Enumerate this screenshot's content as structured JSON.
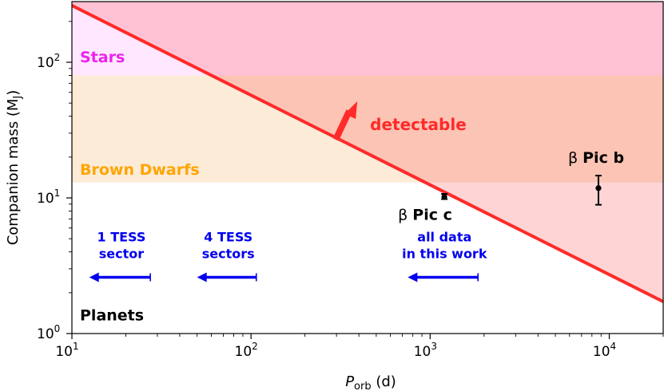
{
  "chart_data": {
    "type": "scatter",
    "xscale": "log",
    "yscale": "log",
    "xlim": [
      10,
      20000
    ],
    "ylim": [
      1,
      280
    ],
    "xlabel": {
      "main": "P",
      "sub": "orb",
      "rest": " (d)"
    },
    "ylabel": {
      "main": "Companion mass (M",
      "sub": "J",
      "rest": ")"
    },
    "x_ticks": [
      {
        "value": 10,
        "base": "10",
        "exp": "1"
      },
      {
        "value": 100,
        "base": "10",
        "exp": "2"
      },
      {
        "value": 1000,
        "base": "10",
        "exp": "3"
      },
      {
        "value": 10000,
        "base": "10",
        "exp": "4"
      }
    ],
    "y_ticks": [
      {
        "value": 1,
        "base": "10",
        "exp": "0"
      },
      {
        "value": 10,
        "base": "10",
        "exp": "1"
      },
      {
        "value": 100,
        "base": "10",
        "exp": "2"
      }
    ],
    "regions": [
      {
        "label": "Stars",
        "ymin": 80,
        "ymax": 280,
        "color": "#ff44ff",
        "opacity": 0.12,
        "label_color": "#ee22ee"
      },
      {
        "label": "Brown Dwarfs",
        "ymin": 13,
        "ymax": 80,
        "color": "#f5b060",
        "opacity": 0.25,
        "label_color": "#ffa500"
      },
      {
        "label": "Planets",
        "ymin": 1,
        "ymax": 13,
        "color": "#ffffff",
        "opacity": 0,
        "label_color": "#000000"
      }
    ],
    "detection_limit": {
      "label": "detectable",
      "color": "#ff2a2a",
      "points": [
        [
          10,
          262
        ],
        [
          20000,
          1.72
        ]
      ],
      "fill_color": "#ff2a2a",
      "fill_opacity": 0.2
    },
    "points": [
      {
        "label": "β Pic b",
        "x": 8700,
        "y": 11.8,
        "yerr_low": 8.9,
        "yerr_high": 14.6
      },
      {
        "label": "β Pic c",
        "x": 1200,
        "y": 10.2,
        "yerr_low": 9.8,
        "yerr_high": 10.7
      }
    ],
    "baselines": [
      {
        "label_lines": [
          "1 TESS",
          "sector"
        ],
        "x_start": 27.4,
        "x_end": 12.5,
        "y": 2.6
      },
      {
        "label_lines": [
          "4 TESS",
          "sectors"
        ],
        "x_start": 107,
        "x_end": 50,
        "y": 2.6
      },
      {
        "label_lines": [
          "all data",
          "in this work"
        ],
        "x_start": 1850,
        "x_end": 750,
        "y": 2.6
      }
    ],
    "baseline_color": "#0000ee",
    "grid": false
  }
}
